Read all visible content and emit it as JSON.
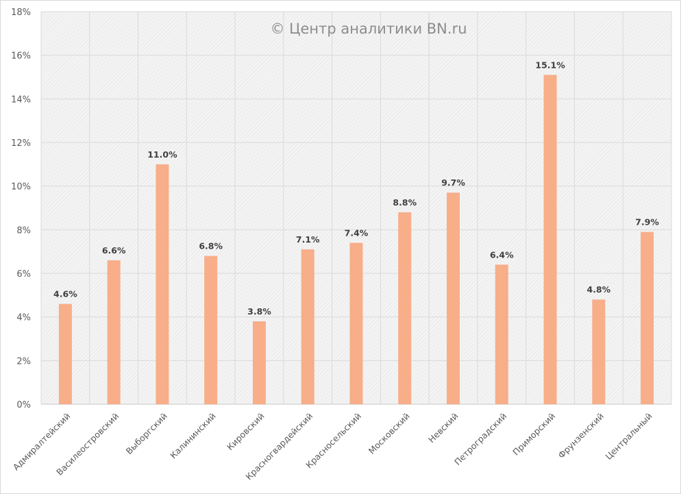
{
  "watermark": "© Центр аналитики BN.ru",
  "colors": {
    "bar": "#F7AE89",
    "plot_background": "#F2F2F2",
    "gridline": "#D9D9D9",
    "text": "#595959",
    "data_label": "#404040"
  },
  "chart_data": {
    "type": "bar",
    "title": "",
    "xlabel": "",
    "ylabel": "",
    "ylim": [
      0,
      18
    ],
    "y_tick_step": 2,
    "y_tick_format": "percent",
    "yticks": [
      "0%",
      "2%",
      "4%",
      "6%",
      "8%",
      "10%",
      "12%",
      "14%",
      "16%",
      "18%"
    ],
    "grid": true,
    "legend": "none",
    "categories": [
      "Адмиралтейский",
      "Василеостровский",
      "Выборгский",
      "Калининский",
      "Кировский",
      "Красногвардейский",
      "Красносельский",
      "Московский",
      "Невский",
      "Петроградский",
      "Приморский",
      "Фрунзенский",
      "Центральный"
    ],
    "values": [
      4.6,
      6.6,
      11.0,
      6.8,
      3.8,
      7.1,
      7.4,
      8.8,
      9.7,
      6.4,
      15.1,
      4.8,
      7.9
    ],
    "data_labels": [
      "4.6%",
      "6.6%",
      "11.0%",
      "6.8%",
      "3.8%",
      "7.1%",
      "7.4%",
      "8.8%",
      "9.7%",
      "6.4%",
      "15.1%",
      "4.8%",
      "7.9%"
    ]
  }
}
